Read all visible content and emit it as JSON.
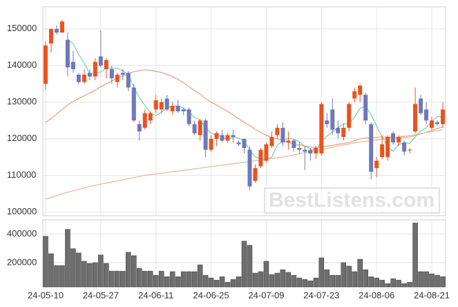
{
  "chart_data": [
    {
      "type": "candlestick",
      "up_color": "#e8531e",
      "down_color": "#6f78b8",
      "ylim": [
        99000,
        156000
      ],
      "yticks": [
        100000,
        110000,
        120000,
        130000,
        140000,
        150000
      ],
      "grid": true,
      "watermark": "BestListens.com",
      "open": [
        135000,
        146000,
        150000,
        149000,
        147000,
        141000,
        137500,
        135500,
        138000,
        137000,
        142500,
        139000,
        139000,
        135500,
        138000,
        138000,
        134000,
        124000,
        123000,
        125000,
        128000,
        128000,
        131000,
        127500,
        129000,
        128000,
        128000,
        124000,
        121000,
        125000,
        117000,
        120000,
        121000,
        119500,
        121000,
        119000,
        120000,
        117000,
        108500,
        112500,
        114000,
        118000,
        121000,
        123000,
        119000,
        119500,
        117500,
        117000,
        117000,
        116000,
        116000,
        125000,
        128000,
        123000,
        120500,
        123000,
        131000,
        132000,
        132000,
        124000,
        112000,
        115000,
        115000,
        121500,
        119000,
        119000,
        117000,
        122000,
        131000,
        128000,
        123000,
        124500,
        124000
      ],
      "high": [
        146500,
        150000,
        151000,
        152500,
        149000,
        144000,
        138000,
        139000,
        139000,
        142000,
        149500,
        142000,
        140000,
        138000,
        139000,
        138500,
        135000,
        125000,
        128000,
        127500,
        132000,
        131000,
        132000,
        130000,
        130500,
        128500,
        128500,
        125000,
        125500,
        125500,
        121000,
        122000,
        122500,
        121500,
        122500,
        119500,
        120000,
        118000,
        113000,
        117500,
        119000,
        122000,
        124000,
        124500,
        122000,
        120000,
        119000,
        118000,
        117500,
        118000,
        130000,
        127000,
        131000,
        125000,
        124000,
        130000,
        134000,
        135000,
        132500,
        124500,
        115000,
        121000,
        121000,
        122000,
        121000,
        119500,
        117500,
        134000,
        132000,
        130000,
        126000,
        125000,
        130000
      ],
      "low": [
        133500,
        143500,
        148500,
        149000,
        137000,
        138000,
        135000,
        135000,
        136000,
        136000,
        139500,
        136500,
        135000,
        134000,
        136000,
        133000,
        124500,
        119500,
        122500,
        124000,
        127000,
        127000,
        127500,
        126500,
        127000,
        126500,
        123500,
        121000,
        119500,
        115000,
        116500,
        118000,
        119000,
        119000,
        119000,
        118000,
        116000,
        106000,
        108000,
        112000,
        113500,
        117500,
        120000,
        118000,
        117000,
        116500,
        116000,
        111500,
        114000,
        114500,
        115500,
        123000,
        121000,
        120000,
        119500,
        122000,
        130000,
        130000,
        124000,
        109000,
        109500,
        114500,
        114000,
        118500,
        118000,
        115500,
        116000,
        121500,
        126500,
        124000,
        122500,
        123500,
        123000
      ],
      "close": [
        145500,
        150000,
        149000,
        152000,
        139500,
        139000,
        135500,
        137500,
        137000,
        141000,
        140000,
        141500,
        136500,
        137500,
        137500,
        134000,
        125000,
        122000,
        127000,
        127000,
        130500,
        130000,
        128000,
        129000,
        127500,
        127500,
        124000,
        121500,
        125000,
        117000,
        120000,
        121500,
        119500,
        121000,
        120500,
        118500,
        117500,
        107000,
        112000,
        117000,
        118500,
        120500,
        123000,
        119000,
        119500,
        117500,
        117000,
        116500,
        116000,
        117500,
        129500,
        124000,
        122500,
        121500,
        123000,
        129500,
        133000,
        134500,
        125000,
        111000,
        114000,
        118500,
        120500,
        119000,
        120500,
        116500,
        117000,
        129500,
        127000,
        125000,
        125000,
        124000,
        128000
      ],
      "series": [
        {
          "color": "#7fd3b6",
          "values": [
            null,
            null,
            null,
            null,
            147200,
            145900,
            143000,
            140700,
            137700,
            138000,
            138200,
            139400,
            139200,
            139300,
            138600,
            137400,
            134100,
            131200,
            129100,
            127000,
            126300,
            127300,
            128500,
            128900,
            129000,
            128400,
            127200,
            125900,
            125100,
            123000,
            121500,
            121000,
            120600,
            119800,
            120500,
            120200,
            119400,
            116900,
            115100,
            114400,
            114400,
            115000,
            118200,
            119600,
            120100,
            119900,
            119200,
            117900,
            117300,
            116900,
            119300,
            120700,
            121900,
            123000,
            124100,
            124100,
            125900,
            128300,
            129000,
            126600,
            123500,
            120600,
            117800,
            116600,
            118500,
            119000,
            118700,
            120500,
            122100,
            123000,
            124700,
            126100,
            125800
          ]
        },
        {
          "color": "#e9a488",
          "values": [
            124500,
            125500,
            126800,
            128000,
            129200,
            130200,
            131000,
            131700,
            132500,
            133300,
            134200,
            135000,
            135800,
            136500,
            137200,
            137800,
            138300,
            138600,
            138800,
            138700,
            138400,
            138100,
            137600,
            137000,
            136200,
            135300,
            134200,
            133200,
            132200,
            131000,
            130000,
            129200,
            128300,
            127500,
            126500,
            125500,
            124500,
            123600,
            122600,
            121700,
            121000,
            120300,
            120000,
            119500,
            119000,
            118600,
            118300,
            118000,
            117800,
            117600,
            117800,
            118000,
            118200,
            118500,
            118700,
            119000,
            119500,
            120000,
            120200,
            120300,
            120400,
            120500,
            120500,
            120400,
            120400,
            120400,
            120500,
            120900,
            121300,
            121800,
            122300,
            122800,
            123200
          ]
        },
        {
          "color": "#e6bb98",
          "values": [
            103500,
            104000,
            104500,
            105000,
            105400,
            105800,
            106200,
            106600,
            107000,
            107300,
            107600,
            107900,
            108200,
            108500,
            108800,
            109100,
            109400,
            109700,
            110000,
            110200,
            110400,
            110600,
            110800,
            111000,
            111200,
            111400,
            111600,
            111800,
            112000,
            112200,
            112400,
            112600,
            112800,
            113000,
            113200,
            113400,
            113600,
            113800,
            114000,
            114200,
            114400,
            114600,
            114800,
            115000,
            115300,
            115600,
            115900,
            116200,
            116500,
            116800,
            117100,
            117400,
            117700,
            118000,
            118300,
            118600,
            118900,
            119100,
            119300,
            119500,
            119700,
            119900,
            120100,
            120300,
            120500,
            120700,
            120900,
            121100,
            121400,
            121700,
            122000,
            122200,
            122500
          ]
        }
      ]
    },
    {
      "type": "bar",
      "color": "#6e6e6e",
      "ylim": [
        30000,
        500000
      ],
      "yticks": [
        200000,
        400000
      ],
      "grid": true,
      "categories": [
        "24-05-10",
        null,
        null,
        null,
        null,
        null,
        null,
        null,
        null,
        null,
        "24-05-27",
        null,
        null,
        null,
        null,
        null,
        null,
        null,
        null,
        null,
        "24-06-11",
        null,
        null,
        null,
        null,
        null,
        null,
        null,
        null,
        null,
        "24-06-25",
        null,
        null,
        null,
        null,
        null,
        null,
        null,
        null,
        null,
        "24-07-09",
        null,
        null,
        null,
        null,
        null,
        null,
        null,
        null,
        null,
        "24-07-23",
        null,
        null,
        null,
        null,
        null,
        null,
        null,
        null,
        null,
        "24-08-06",
        null,
        null,
        null,
        null,
        null,
        null,
        null,
        null,
        null,
        "24-08-21",
        null,
        null
      ],
      "values": [
        385000,
        263000,
        180000,
        180000,
        434000,
        298000,
        268000,
        210000,
        195000,
        200000,
        254000,
        195000,
        141000,
        141000,
        141000,
        273000,
        249000,
        161000,
        141000,
        141000,
        112000,
        141000,
        102000,
        137000,
        102000,
        137000,
        137000,
        137000,
        185000,
        112000,
        93000,
        78000,
        102000,
        63000,
        83000,
        102000,
        351000,
        322000,
        127000,
        137000,
        210000,
        117000,
        127000,
        151000,
        132000,
        112000,
        93000,
        83000,
        73000,
        93000,
        234000,
        151000,
        112000,
        112000,
        200000,
        176000,
        137000,
        224000,
        151000,
        102000,
        93000,
        78000,
        54000,
        88000,
        78000,
        54000,
        63000,
        478000,
        137000,
        137000,
        122000,
        112000,
        102000
      ]
    }
  ]
}
